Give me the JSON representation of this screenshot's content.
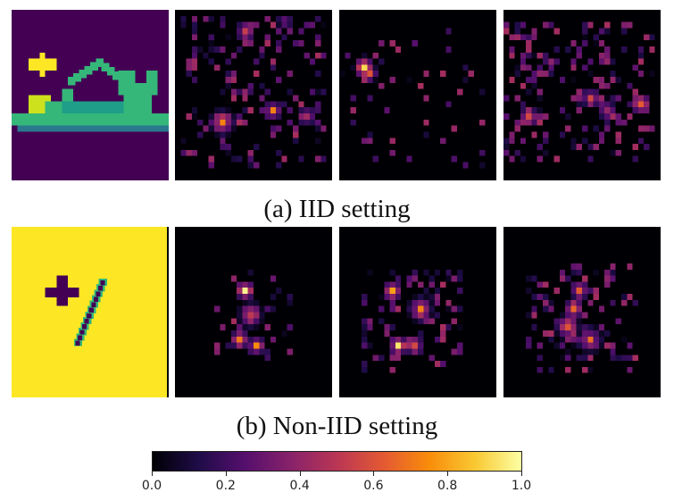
{
  "captions": {
    "a": "(a) IID setting",
    "b": "(b) Non-IID setting"
  },
  "colorbar": {
    "colormap": "inferno",
    "range": [
      0.0,
      1.0
    ],
    "ticks": [
      "0.0",
      "0.2",
      "0.4",
      "0.6",
      "0.8",
      "1.0"
    ],
    "stops": [
      "#000004",
      "#1f0c48",
      "#550f6d",
      "#88226a",
      "#ba3655",
      "#e35933",
      "#f98c0a",
      "#f9c932",
      "#fcffa4"
    ]
  },
  "rows": [
    {
      "setting": "IID",
      "input_description": "sandal image with trigger",
      "input_colors": {
        "background": "#440154",
        "object": "#35b779",
        "highlight": "#cde11d",
        "trigger": "#fde725"
      },
      "maps": 3
    },
    {
      "setting": "Non-IID",
      "input_description": "digit one with trigger",
      "input_colors": {
        "background": "#fde725",
        "object": "#440154",
        "trigger": "#440154"
      },
      "maps": 3
    }
  ]
}
